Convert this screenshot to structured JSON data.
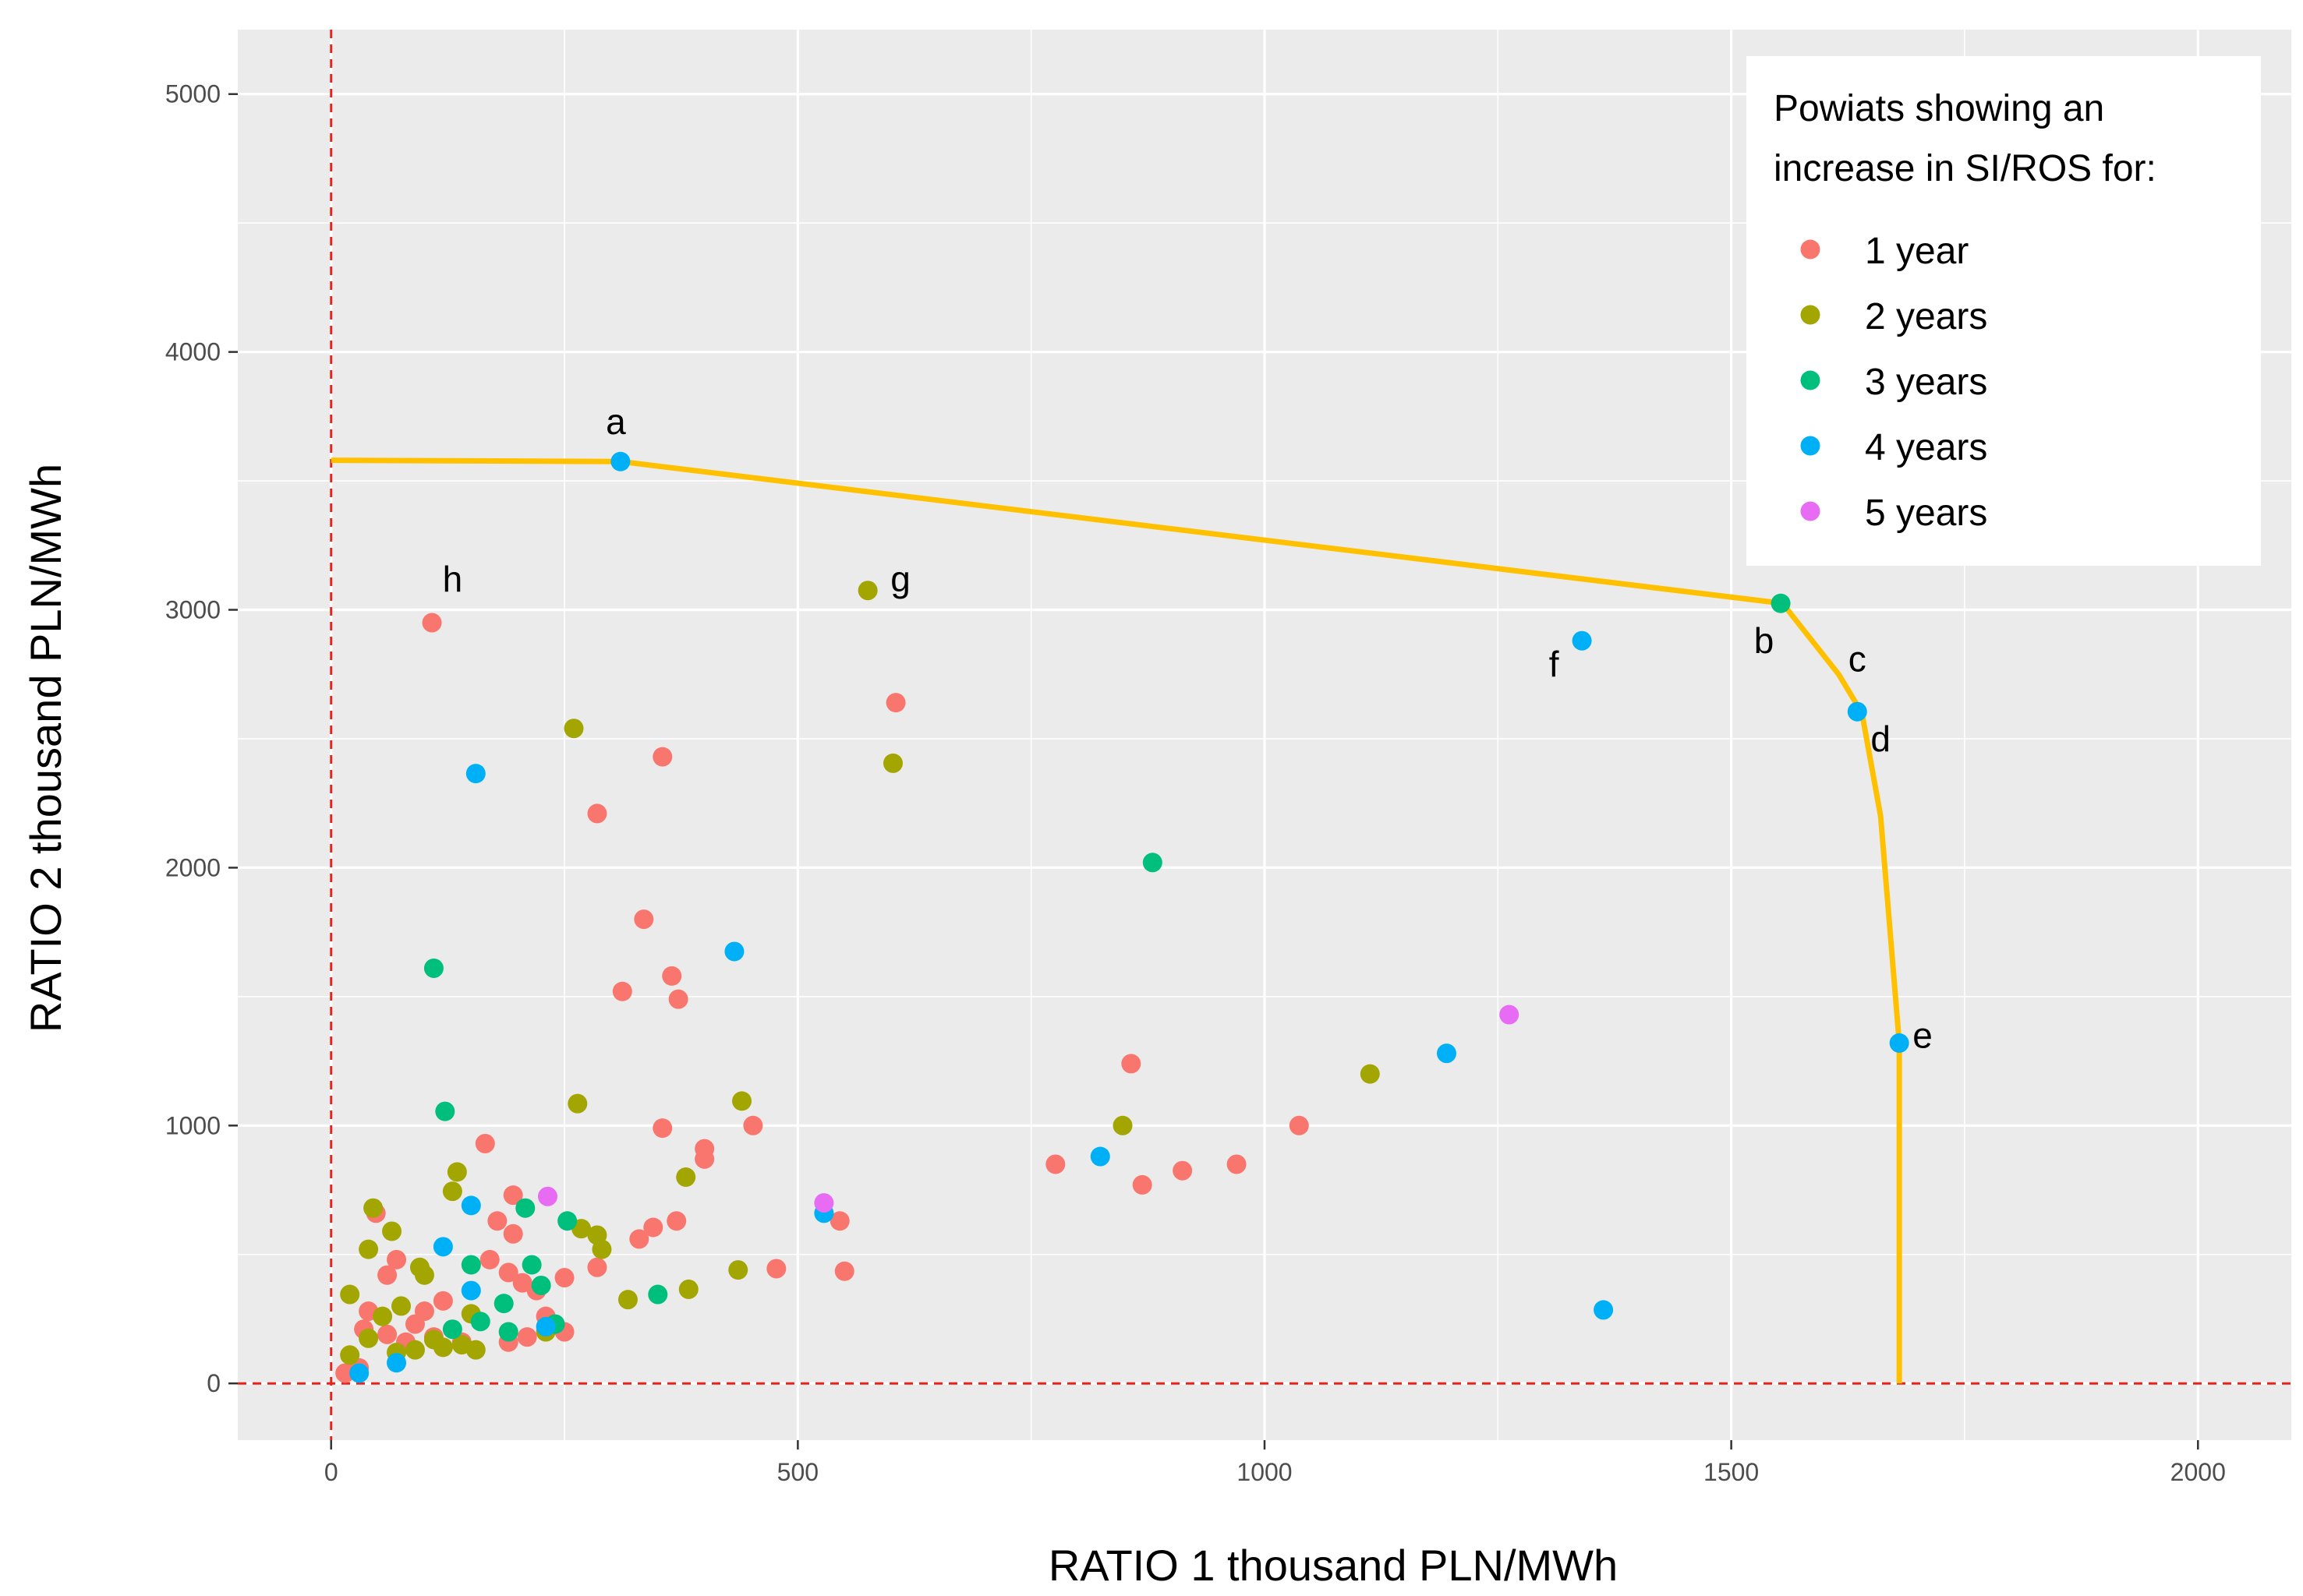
{
  "colors": {
    "panel_bg": "#EBEBEB",
    "grid": "#FFFFFF",
    "frontier": "#FFC000",
    "refline": "#E8231B",
    "series": {
      "1 year": "#F8766D",
      "2 years": "#A3A500",
      "3 years": "#00BF7D",
      "4 years": "#00B0F6",
      "5 years": "#E76BF3"
    }
  },
  "chart_data": {
    "type": "scatter",
    "xlabel": "RATIO 1   thousand PLN/MWh",
    "ylabel": "RATIO 2  thousand PLN/MWh",
    "xlim": [
      -100,
      2100
    ],
    "ylim": [
      -220,
      5250
    ],
    "x_ticks": [
      0,
      500,
      1000,
      1500,
      2000
    ],
    "y_ticks": [
      0,
      1000,
      2000,
      3000,
      4000,
      5000
    ],
    "x_tick_labels": [
      "0",
      "500",
      "1000",
      "1500",
      "2000"
    ],
    "y_tick_labels": [
      "0",
      "1000",
      "2000",
      "3000",
      "4000",
      "5000"
    ],
    "grid": true,
    "legend": {
      "title_lines": [
        "Powiats showing an",
        "increase in SI/ROS for:"
      ],
      "entries": [
        "1 year",
        "2 years",
        "3 years",
        "4 years",
        "5 years"
      ],
      "position": "top-right"
    },
    "reference_lines": {
      "x": 0,
      "y": 0,
      "style": "dashed"
    },
    "frontier": [
      [
        0,
        3580
      ],
      [
        310,
        3575
      ],
      [
        1555,
        3025
      ],
      [
        1615,
        2750
      ],
      [
        1640,
        2600
      ],
      [
        1660,
        2200
      ],
      [
        1680,
        1320
      ],
      [
        1680,
        0
      ]
    ],
    "point_labels": [
      {
        "text": "a",
        "x": 305,
        "y": 3730
      },
      {
        "text": "b",
        "x": 1535,
        "y": 2880
      },
      {
        "text": "c",
        "x": 1635,
        "y": 2810
      },
      {
        "text": "d",
        "x": 1660,
        "y": 2500
      },
      {
        "text": "e",
        "x": 1705,
        "y": 1350
      },
      {
        "text": "f",
        "x": 1310,
        "y": 2790
      },
      {
        "text": "g",
        "x": 610,
        "y": 3120
      },
      {
        "text": "h",
        "x": 130,
        "y": 3120
      }
    ],
    "series": [
      {
        "name": "1 year",
        "points": [
          [
            108,
            2950
          ],
          [
            605,
            2640
          ],
          [
            355,
            2430
          ],
          [
            285,
            2210
          ],
          [
            335,
            1800
          ],
          [
            365,
            1580
          ],
          [
            372,
            1490
          ],
          [
            312,
            1520
          ],
          [
            857,
            1240
          ],
          [
            1037,
            1000
          ],
          [
            970,
            850
          ],
          [
            912,
            825
          ],
          [
            776,
            850
          ],
          [
            869,
            770
          ],
          [
            355,
            990
          ],
          [
            400,
            910
          ],
          [
            400,
            870
          ],
          [
            452,
            1000
          ],
          [
            477,
            445
          ],
          [
            545,
            630
          ],
          [
            550,
            435
          ],
          [
            370,
            630
          ],
          [
            345,
            605
          ],
          [
            330,
            560
          ],
          [
            285,
            450
          ],
          [
            165,
            930
          ],
          [
            195,
            730
          ],
          [
            178,
            630
          ],
          [
            195,
            580
          ],
          [
            170,
            480
          ],
          [
            190,
            430
          ],
          [
            205,
            390
          ],
          [
            220,
            360
          ],
          [
            250,
            410
          ],
          [
            230,
            260
          ],
          [
            250,
            200
          ],
          [
            120,
            320
          ],
          [
            100,
            280
          ],
          [
            90,
            230
          ],
          [
            70,
            480
          ],
          [
            60,
            420
          ],
          [
            40,
            280
          ],
          [
            35,
            210
          ],
          [
            60,
            190
          ],
          [
            80,
            160
          ],
          [
            110,
            180
          ],
          [
            140,
            160
          ],
          [
            30,
            60
          ],
          [
            15,
            40
          ],
          [
            48,
            660
          ],
          [
            190,
            160
          ],
          [
            210,
            180
          ]
        ]
      },
      {
        "name": "2 years",
        "points": [
          [
            575,
            3075
          ],
          [
            602,
            2405
          ],
          [
            260,
            2540
          ],
          [
            264,
            1085
          ],
          [
            440,
            1095
          ],
          [
            380,
            800
          ],
          [
            436,
            440
          ],
          [
            383,
            365
          ],
          [
            318,
            325
          ],
          [
            285,
            575
          ],
          [
            290,
            520
          ],
          [
            268,
            600
          ],
          [
            848,
            1000
          ],
          [
            1113,
            1200
          ],
          [
            135,
            820
          ],
          [
            130,
            745
          ],
          [
            65,
            590
          ],
          [
            45,
            680
          ],
          [
            40,
            520
          ],
          [
            95,
            450
          ],
          [
            100,
            420
          ],
          [
            75,
            300
          ],
          [
            55,
            260
          ],
          [
            40,
            175
          ],
          [
            20,
            110
          ],
          [
            20,
            345
          ],
          [
            90,
            130
          ],
          [
            110,
            170
          ],
          [
            150,
            270
          ],
          [
            155,
            130
          ],
          [
            140,
            150
          ],
          [
            230,
            200
          ],
          [
            70,
            120
          ],
          [
            120,
            140
          ]
        ]
      },
      {
        "name": "3 years",
        "points": [
          [
            1553,
            3025
          ],
          [
            880,
            2020
          ],
          [
            110,
            1610
          ],
          [
            122,
            1055
          ],
          [
            208,
            680
          ],
          [
            253,
            630
          ],
          [
            215,
            460
          ],
          [
            225,
            380
          ],
          [
            150,
            460
          ],
          [
            185,
            310
          ],
          [
            190,
            200
          ],
          [
            350,
            345
          ],
          [
            130,
            210
          ],
          [
            160,
            240
          ],
          [
            240,
            230
          ]
        ]
      },
      {
        "name": "4 years",
        "points": [
          [
            310,
            3575
          ],
          [
            1635,
            2605
          ],
          [
            1340,
            2880
          ],
          [
            155,
            2365
          ],
          [
            432,
            1675
          ],
          [
            1195,
            1280
          ],
          [
            1680,
            1320
          ],
          [
            1363,
            285
          ],
          [
            824,
            880
          ],
          [
            528,
            660
          ],
          [
            150,
            690
          ],
          [
            120,
            530
          ],
          [
            150,
            360
          ],
          [
            70,
            80
          ],
          [
            30,
            40
          ],
          [
            230,
            220
          ]
        ]
      },
      {
        "name": "5 years",
        "points": [
          [
            1262,
            1430
          ],
          [
            528,
            700
          ],
          [
            232,
            725
          ]
        ]
      }
    ]
  }
}
